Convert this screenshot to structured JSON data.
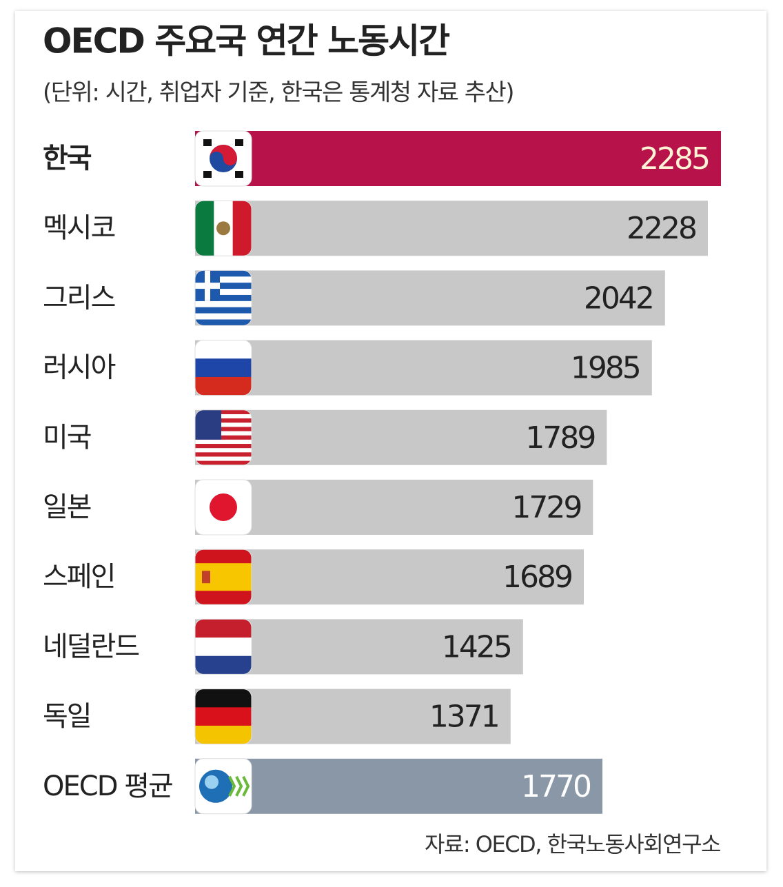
{
  "chart_data": {
    "type": "bar",
    "orientation": "horizontal",
    "title": "OECD 주요국 연간 노동시간",
    "subtitle": "(단위: 시간, 취업자 기준, 한국은 통계청 자료 추산)",
    "source": "자료: OECD, 한국노동사회연구소",
    "categories": [
      "한국",
      "멕시코",
      "그리스",
      "러시아",
      "미국",
      "일본",
      "스페인",
      "네덜란드",
      "독일",
      "OECD 평균"
    ],
    "values": [
      2285,
      2228,
      2042,
      1985,
      1789,
      1729,
      1689,
      1425,
      1371,
      1770
    ],
    "colors": [
      "#b8124b",
      "#c8c8c8",
      "#c8c8c8",
      "#c8c8c8",
      "#c8c8c8",
      "#c8c8c8",
      "#c8c8c8",
      "#c8c8c8",
      "#c8c8c8",
      "#8a97a6"
    ],
    "xlim": [
      0,
      2285
    ]
  }
}
